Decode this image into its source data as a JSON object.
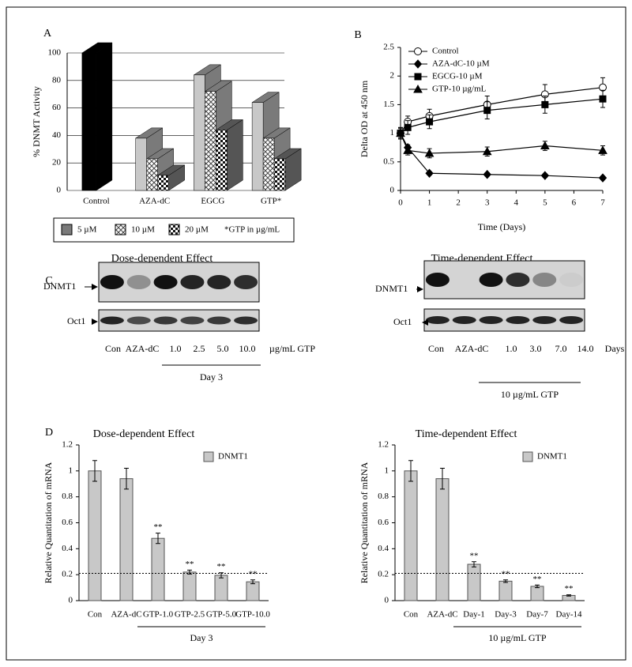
{
  "chart_data": [
    {
      "type": "bar3d",
      "panel_label": "A",
      "ylabel": "% DNMT Activity",
      "categories": [
        "Control",
        "AZA-dC",
        "EGCG",
        "GTP*"
      ],
      "control": {
        "value": 100,
        "color": "#000000"
      },
      "series": [
        {
          "name": "5 µM",
          "color": "#c8c8c8",
          "side_color": "#7a7a7a",
          "pattern": "solid",
          "values": [
            null,
            38,
            84,
            64
          ]
        },
        {
          "name": "10 µM",
          "color": "#c8c8c8",
          "side_color": "#7a7a7a",
          "pattern": "crosshatch",
          "values": [
            null,
            23,
            72,
            38
          ]
        },
        {
          "name": "20 µM",
          "color": "#c8c8c8",
          "side_color": "#555555",
          "pattern": "checker",
          "values": [
            null,
            11,
            44,
            23
          ]
        }
      ],
      "note": "*GTP in µg/mL",
      "ylim": [
        0,
        100
      ],
      "yticks": [
        0,
        20,
        40,
        60,
        80,
        100
      ],
      "grid": true
    },
    {
      "type": "line",
      "panel_label": "B",
      "xlabel": "Time (Days)",
      "ylabel": "Delta OD at 450 nm",
      "x": [
        0,
        0.25,
        1,
        3,
        5,
        7
      ],
      "series": [
        {
          "name": "Control",
          "color": "#000000",
          "marker": "circle-open",
          "values": [
            1,
            1.2,
            1.3,
            1.5,
            1.68,
            1.8
          ],
          "errors": [
            0.1,
            0.1,
            0.12,
            0.15,
            0.17,
            0.17
          ]
        },
        {
          "name": "AZA-dC-10  µM",
          "color": "#000000",
          "marker": "diamond",
          "values": [
            1,
            0.75,
            0.3,
            0.28,
            0.26,
            0.22
          ],
          "errors": [
            0.05,
            0.05,
            0.03,
            0.03,
            0.03,
            0.03
          ]
        },
        {
          "name": "EGCG-10 µM",
          "color": "#000000",
          "marker": "square",
          "values": [
            1,
            1.1,
            1.2,
            1.4,
            1.5,
            1.6
          ],
          "errors": [
            0.1,
            0.12,
            0.12,
            0.15,
            0.15,
            0.15
          ]
        },
        {
          "name": "GTP-10 µg/mL",
          "color": "#000000",
          "marker": "triangle",
          "values": [
            1,
            0.7,
            0.65,
            0.68,
            0.78,
            0.7
          ],
          "errors": [
            0.08,
            0.08,
            0.08,
            0.08,
            0.08,
            0.08
          ]
        }
      ],
      "xlim": [
        0,
        7
      ],
      "xticks": [
        0,
        1,
        2,
        3,
        4,
        5,
        6,
        7
      ],
      "ylim": [
        0,
        2.5
      ],
      "yticks": [
        0,
        0.5,
        1,
        1.5,
        2,
        2.5
      ],
      "legend": "upper left"
    },
    {
      "type": "bar",
      "panel_label": "D",
      "title": "Dose-dependent Effect",
      "ylabel": "Relative Quantitation of mRNA",
      "categories": [
        "Con",
        "AZA-dC",
        "GTP-1.0",
        "GTP-2.5",
        "GTP-5.0",
        "GTP-10.0"
      ],
      "series": [
        {
          "name": "DNMT1",
          "color": "#c8c8c8",
          "values": [
            1,
            0.94,
            0.48,
            0.22,
            0.195,
            0.145
          ],
          "errors": [
            0.08,
            0.08,
            0.04,
            0.015,
            0.02,
            0.015
          ],
          "annotations": [
            null,
            null,
            "**",
            "**",
            "**",
            "**"
          ]
        }
      ],
      "group_label": "Day 3",
      "reference_line": 0.21,
      "ylim": [
        0,
        1.2
      ],
      "yticks": [
        0,
        0.2,
        0.4,
        0.6,
        0.8,
        1,
        1.2
      ],
      "legend": "upper right"
    },
    {
      "type": "bar",
      "title": "Time-dependent Effect",
      "ylabel": "Relative Quantitation of mRNA",
      "categories": [
        "Con",
        "AZA-dC",
        "Day-1",
        "Day-3",
        "Day-7",
        "Day-14"
      ],
      "series": [
        {
          "name": "DNMT1",
          "color": "#c8c8c8",
          "values": [
            1,
            0.94,
            0.28,
            0.15,
            0.11,
            0.04
          ],
          "errors": [
            0.08,
            0.08,
            0.02,
            0.01,
            0.01,
            0.005
          ],
          "annotations": [
            null,
            null,
            "**",
            "**",
            "**",
            "**"
          ]
        }
      ],
      "group_label": "10 µg/mL GTP",
      "reference_line": 0.21,
      "ylim": [
        0,
        1.2
      ],
      "yticks": [
        0,
        0.2,
        0.4,
        0.6,
        0.8,
        1,
        1.2
      ],
      "legend": "upper right"
    }
  ],
  "blot": {
    "panel_label": "C",
    "left": {
      "title": "Dose-dependent Effect",
      "rows": [
        "DNMT1",
        "Oct1"
      ],
      "lanes": [
        "Con",
        "AZA-dC",
        "1.0",
        "2.5",
        "5.0",
        "10.0"
      ],
      "unit": "µg/mL GTP",
      "group": "Day 3"
    },
    "right": {
      "title": "Time-dependent Effect",
      "rows": [
        "DNMT1",
        "Oct1"
      ],
      "lanes": [
        "Con",
        "AZA-dC",
        "1.0",
        "3.0",
        "7.0",
        "14.0"
      ],
      "unit": "Days",
      "group": "10 µg/mL GTP"
    }
  }
}
